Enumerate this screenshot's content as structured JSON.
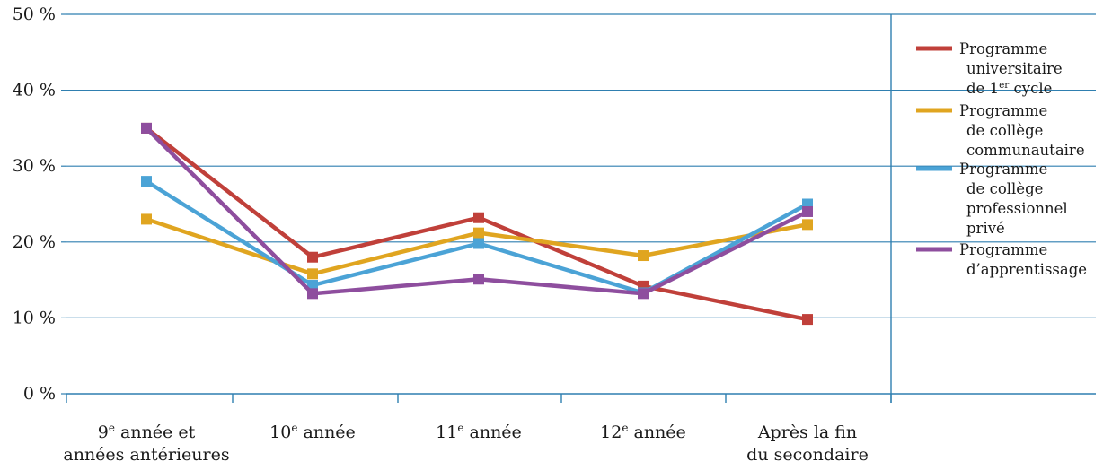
{
  "chart_data": {
    "type": "line",
    "title": "",
    "xlabel": "",
    "ylabel": "",
    "ylim": [
      0,
      50
    ],
    "yticks": [
      "0 %",
      "10 %",
      "20 %",
      "30 %",
      "40 %",
      "50 %"
    ],
    "grid": true,
    "legend_position": "right",
    "categories": [
      [
        "9e année et",
        "années antérieures"
      ],
      [
        "10e année"
      ],
      [
        "11e année"
      ],
      [
        "12e année"
      ],
      [
        "Après la fin",
        "du secondaire"
      ]
    ],
    "series": [
      {
        "name": [
          "Programme",
          "universitaire",
          "de 1er cycle"
        ],
        "color": "#c0403a",
        "values": [
          35,
          18,
          23.2,
          14.2,
          9.8
        ]
      },
      {
        "name": [
          "Programme",
          "de collège",
          "communautaire"
        ],
        "color": "#e0a520",
        "values": [
          23,
          15.8,
          21.2,
          18.2,
          22.3
        ]
      },
      {
        "name": [
          "Programme",
          "de collège",
          "professionnel",
          "privé"
        ],
        "color": "#4ba3d6",
        "values": [
          28,
          14.3,
          19.8,
          13.3,
          25
        ]
      },
      {
        "name": [
          "Programme",
          "d’apprentissage"
        ],
        "color": "#8e4e9e",
        "values": [
          35,
          13.2,
          15.1,
          13.2,
          24
        ]
      }
    ]
  }
}
